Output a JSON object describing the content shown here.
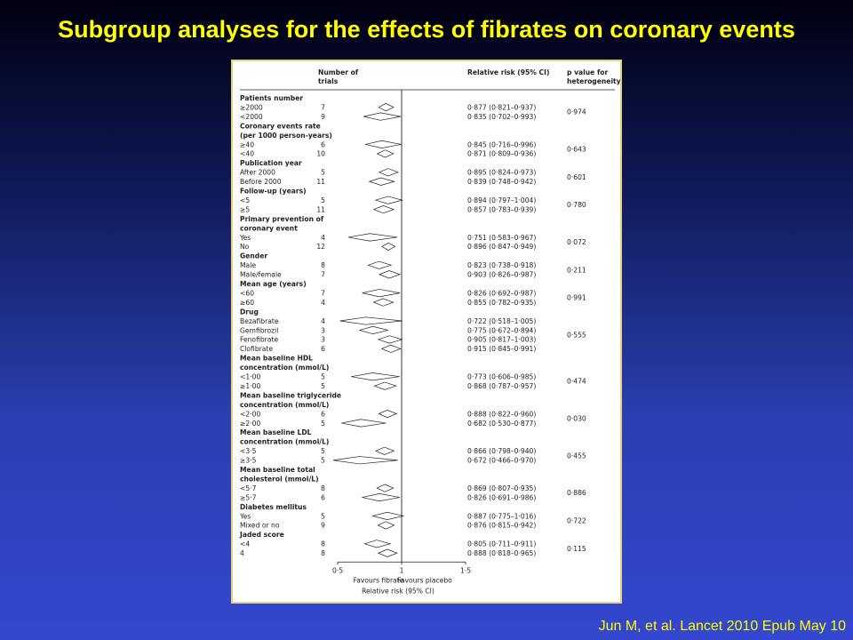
{
  "slide": {
    "title": "Subgroup analyses for the effects of fibrates on coronary events",
    "citation": "Jun M, et al. Lancet 2010 Epub May 10"
  },
  "colors": {
    "title": "#ffff00",
    "panel_border": "#e8d27a",
    "ink": "#222222"
  },
  "chart_data": {
    "type": "forest",
    "headers": {
      "trials": "Number of trials",
      "rr": "Relative risk (95% CI)",
      "p": "p value for heterogeneity"
    },
    "x_axis": {
      "ticks": [
        0.5,
        1,
        1.5
      ],
      "tick_labels": [
        "0·5",
        "1",
        "1·5"
      ],
      "xlim": [
        0.5,
        1.5
      ],
      "label": "Relative risk (95% CI)",
      "favours_left": "Favours fibrate",
      "favours_right": "Favours placebo"
    },
    "groups": [
      {
        "title": [
          "Patients number"
        ],
        "p": "0·974",
        "rows": [
          {
            "label": "≥2000",
            "n": "7",
            "rr": 0.877,
            "lo": 0.821,
            "hi": 0.937,
            "text": "0·877 (0·821–0·937)"
          },
          {
            "label": "<2000",
            "n": "9",
            "rr": 0.835,
            "lo": 0.702,
            "hi": 0.993,
            "text": "0·835 (0·702–0·993)"
          }
        ]
      },
      {
        "title": [
          "Coronary events rate",
          "(per 1000 person-years)"
        ],
        "p": "0·643",
        "rows": [
          {
            "label": "≥40",
            "n": "6",
            "rr": 0.845,
            "lo": 0.716,
            "hi": 0.996,
            "text": "0·845 (0·716–0·996)"
          },
          {
            "label": "<40",
            "n": "10",
            "rr": 0.871,
            "lo": 0.809,
            "hi": 0.936,
            "text": "0·871 (0·809–0·936)"
          }
        ]
      },
      {
        "title": [
          "Publication year"
        ],
        "p": "0·601",
        "rows": [
          {
            "label": "After 2000",
            "n": "5",
            "rr": 0.895,
            "lo": 0.824,
            "hi": 0.973,
            "text": "0·895 (0·824–0·973)"
          },
          {
            "label": "Before 2000",
            "n": "11",
            "rr": 0.839,
            "lo": 0.748,
            "hi": 0.942,
            "text": "0·839 (0·748–0·942)"
          }
        ]
      },
      {
        "title": [
          "Follow-up (years)"
        ],
        "p": "0·780",
        "rows": [
          {
            "label": "<5",
            "n": "5",
            "rr": 0.894,
            "lo": 0.797,
            "hi": 1.004,
            "text": "0·894 (0·797–1·004)"
          },
          {
            "label": "≥5",
            "n": "11",
            "rr": 0.857,
            "lo": 0.783,
            "hi": 0.939,
            "text": "0·857 (0·783–0·939)"
          }
        ]
      },
      {
        "title": [
          "Primary prevention of",
          "coronary event"
        ],
        "p": "0·072",
        "rows": [
          {
            "label": "Yes",
            "n": "4",
            "rr": 0.751,
            "lo": 0.583,
            "hi": 0.967,
            "text": "0·751 (0·583–0·967)"
          },
          {
            "label": "No",
            "n": "12",
            "rr": 0.896,
            "lo": 0.847,
            "hi": 0.949,
            "text": "0·896 (0·847–0·949)"
          }
        ]
      },
      {
        "title": [
          "Gender"
        ],
        "p": "0·211",
        "rows": [
          {
            "label": "Male",
            "n": "8",
            "rr": 0.823,
            "lo": 0.738,
            "hi": 0.918,
            "text": "0·823 (0·738–0·918)"
          },
          {
            "label": "Male/female",
            "n": "7",
            "rr": 0.903,
            "lo": 0.826,
            "hi": 0.987,
            "text": "0·903 (0·826–0·987)"
          }
        ]
      },
      {
        "title": [
          "Mean age (years)"
        ],
        "p": "0·991",
        "rows": [
          {
            "label": "<60",
            "n": "7",
            "rr": 0.826,
            "lo": 0.692,
            "hi": 0.987,
            "text": "0·826 (0·692–0·987)"
          },
          {
            "label": "≥60",
            "n": "4",
            "rr": 0.855,
            "lo": 0.782,
            "hi": 0.935,
            "text": "0·855 (0·782–0·935)"
          }
        ]
      },
      {
        "title": [
          "Drug"
        ],
        "p": "0·555",
        "rows": [
          {
            "label": "Bezafibrate",
            "n": "4",
            "rr": 0.722,
            "lo": 0.518,
            "hi": 1.005,
            "text": "0·722 (0·518–1·005)"
          },
          {
            "label": "Gemfibrozil",
            "n": "3",
            "rr": 0.775,
            "lo": 0.672,
            "hi": 0.894,
            "text": "0·775 (0·672–0·894)"
          },
          {
            "label": "Fenofibrate",
            "n": "3",
            "rr": 0.905,
            "lo": 0.817,
            "hi": 1.003,
            "text": "0·905 (0·817–1·003)"
          },
          {
            "label": "Clofibrate",
            "n": "6",
            "rr": 0.915,
            "lo": 0.845,
            "hi": 0.991,
            "text": "0·915 (0·845–0·991)"
          }
        ]
      },
      {
        "title": [
          "Mean baseline HDL",
          "concentration (mmol/L)"
        ],
        "p": "0·474",
        "rows": [
          {
            "label": "<1·00",
            "n": "5",
            "rr": 0.773,
            "lo": 0.606,
            "hi": 0.985,
            "text": "0·773 (0·606–0·985)"
          },
          {
            "label": "≥1·00",
            "n": "5",
            "rr": 0.868,
            "lo": 0.787,
            "hi": 0.957,
            "text": "0·868 (0·787–0·957)"
          }
        ]
      },
      {
        "title": [
          "Mean baseline triglyceride",
          "concentration (mmol/L)"
        ],
        "p": "0·030",
        "rows": [
          {
            "label": "<2·00",
            "n": "6",
            "rr": 0.888,
            "lo": 0.822,
            "hi": 0.96,
            "text": "0·888 (0·822–0·960)"
          },
          {
            "label": "≥2·00",
            "n": "5",
            "rr": 0.682,
            "lo": 0.53,
            "hi": 0.877,
            "text": "0·682 (0·530–0·877)"
          }
        ]
      },
      {
        "title": [
          "Mean baseline LDL",
          "concentration (mmol/L)"
        ],
        "p": "0·455",
        "rows": [
          {
            "label": "<3·5",
            "n": "5",
            "rr": 0.866,
            "lo": 0.798,
            "hi": 0.94,
            "text": "0·866 (0·798–0·940)"
          },
          {
            "label": "≥3·5",
            "n": "5",
            "rr": 0.672,
            "lo": 0.466,
            "hi": 0.97,
            "text": "0·672 (0·466–0·970)"
          }
        ]
      },
      {
        "title": [
          "Mean baseline total",
          "cholesterol (mmol/L)"
        ],
        "p": "0·886",
        "rows": [
          {
            "label": "<5·7",
            "n": "8",
            "rr": 0.869,
            "lo": 0.807,
            "hi": 0.935,
            "text": "0·869 (0·807–0·935)"
          },
          {
            "label": "≥5·7",
            "n": "6",
            "rr": 0.826,
            "lo": 0.691,
            "hi": 0.986,
            "text": "0·826 (0·691–0·986)"
          }
        ]
      },
      {
        "title": [
          "Diabetes mellitus"
        ],
        "p": "0·722",
        "rows": [
          {
            "label": "Yes",
            "n": "5",
            "rr": 0.887,
            "lo": 0.775,
            "hi": 1.016,
            "text": "0·887 (0·775–1·016)"
          },
          {
            "label": "Mixed or no",
            "n": "9",
            "rr": 0.876,
            "lo": 0.815,
            "hi": 0.942,
            "text": "0·876 (0·815–0·942)"
          }
        ]
      },
      {
        "title": [
          "Jaded score"
        ],
        "p": "0·115",
        "rows": [
          {
            "label": "<4",
            "n": "8",
            "rr": 0.805,
            "lo": 0.711,
            "hi": 0.911,
            "text": "0·805 (0·711–0·911)"
          },
          {
            "label": "4",
            "n": "8",
            "rr": 0.888,
            "lo": 0.818,
            "hi": 0.965,
            "text": "0·888 (0·818–0·965)"
          }
        ]
      }
    ]
  }
}
